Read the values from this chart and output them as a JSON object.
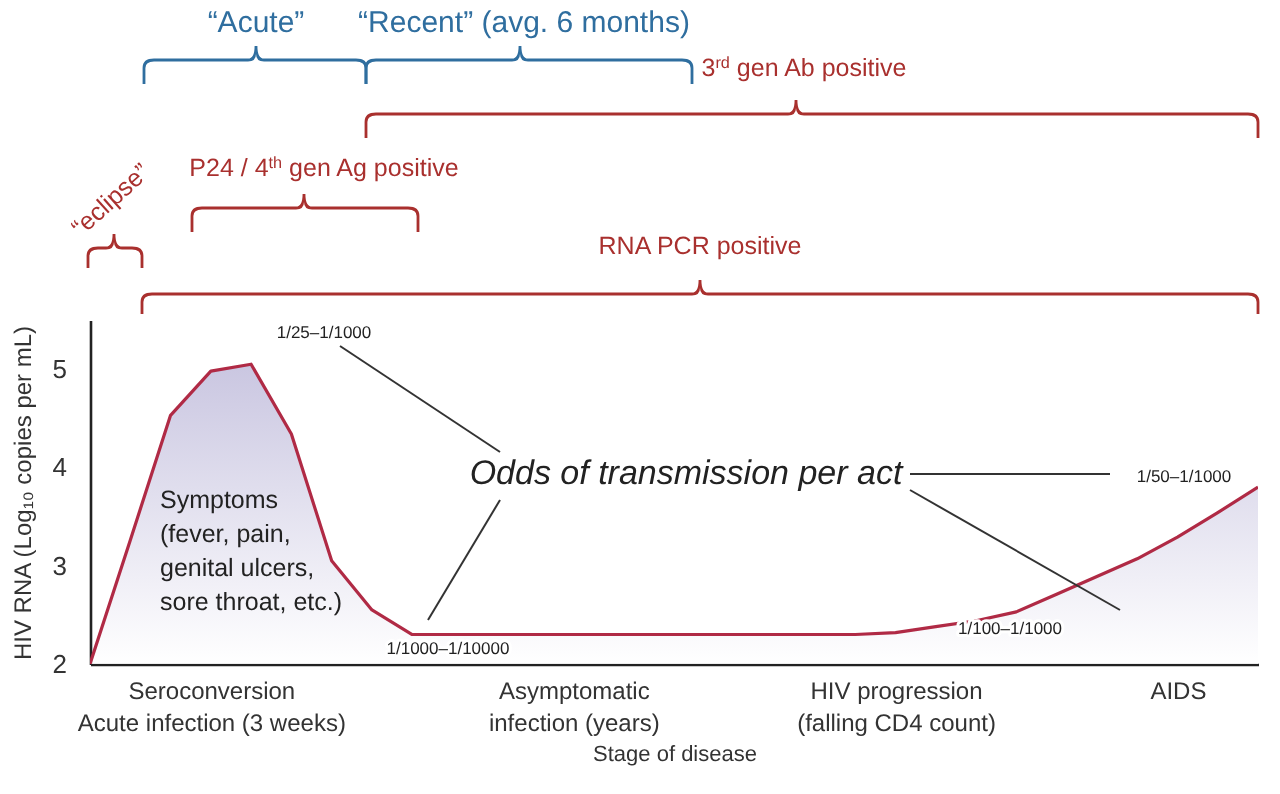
{
  "chart_data": {
    "type": "area",
    "xlabel": "Stage of disease",
    "ylabel": "HIV RNA (Log₁₀ copies per mL)",
    "categories": [
      null,
      null,
      null,
      "Seroconversion\nAcute infection (3 weeks)",
      null,
      null,
      null,
      null,
      null,
      null,
      null,
      null,
      "Asymptomatic\ninfection (years)",
      null,
      null,
      null,
      null,
      null,
      null,
      null,
      "HIV progression\n(falling CD4 count)",
      null,
      null,
      null,
      null,
      null,
      null,
      "AIDS",
      null,
      null
    ],
    "series": [
      {
        "color": "#b02a45",
        "values": [
          2.0,
          3.26,
          4.53,
          4.98,
          5.05,
          4.34,
          3.05,
          2.55,
          2.3,
          2.3,
          2.3,
          2.3,
          2.3,
          2.3,
          2.3,
          2.3,
          2.3,
          2.3,
          2.3,
          2.3,
          2.32,
          2.38,
          2.44,
          2.53,
          2.71,
          2.89,
          3.07,
          3.29,
          3.54,
          3.8
        ]
      }
    ],
    "ylim": [
      2,
      5.5
    ],
    "yticks": [
      2,
      3,
      4,
      5
    ],
    "grid": false,
    "marker": "none",
    "annotations": [
      "“Acute”",
      "“Recent” (avg. 6 months)",
      "3$^{rd}$ gen Ab positive",
      "P24 / 4$^{th}$ gen Ag positive",
      "“eclipse”",
      "RNA PCR positive",
      "Symptoms\n(fever, pain,\ngenital ulcers,\nsore throat, etc.)",
      "Odds of transmission per act",
      "1/25–1/1000",
      "1/1000–1/10000",
      "1/100–1/1000",
      "1/50–1/1000"
    ]
  }
}
